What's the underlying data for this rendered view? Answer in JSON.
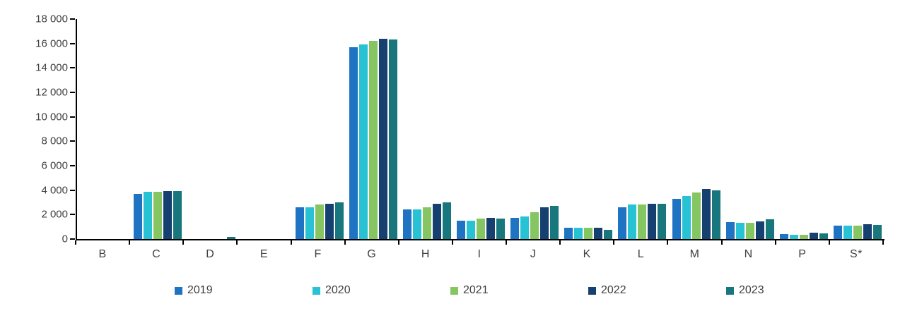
{
  "chart_data": {
    "type": "bar",
    "title": "",
    "xlabel": "",
    "ylabel": "",
    "grid": false,
    "legend_position": "bottom",
    "categories": [
      "B",
      "C",
      "D",
      "E",
      "F",
      "G",
      "H",
      "I",
      "J",
      "K",
      "L",
      "M",
      "N",
      "P",
      "S*"
    ],
    "series": [
      {
        "name": "2019",
        "color": "#1e73c3",
        "values": [
          0,
          3700,
          0,
          0,
          2600,
          15700,
          2400,
          1500,
          1750,
          900,
          2600,
          3300,
          1400,
          400,
          1100
        ]
      },
      {
        "name": "2020",
        "color": "#27c3d5",
        "values": [
          0,
          3850,
          0,
          0,
          2600,
          15900,
          2450,
          1500,
          1850,
          900,
          2800,
          3500,
          1350,
          350,
          1100
        ]
      },
      {
        "name": "2021",
        "color": "#85c663",
        "values": [
          0,
          3850,
          0,
          0,
          2800,
          16200,
          2600,
          1650,
          2200,
          950,
          2800,
          3800,
          1300,
          350,
          1100
        ]
      },
      {
        "name": "2022",
        "color": "#16406f",
        "values": [
          0,
          3950,
          0,
          0,
          2900,
          16400,
          2900,
          1750,
          2600,
          950,
          2900,
          4100,
          1450,
          500,
          1200
        ]
      },
      {
        "name": "2023",
        "color": "#17777d",
        "values": [
          0,
          3900,
          150,
          0,
          3000,
          16300,
          3000,
          1700,
          2700,
          750,
          2900,
          4000,
          1600,
          480,
          1150
        ]
      }
    ],
    "ylim": [
      0,
      18000
    ],
    "y_tick_step": 2000,
    "y_tick_labels": [
      "0",
      "2 000",
      "4 000",
      "6 000",
      "8 000",
      "10 000",
      "12 000",
      "14 000",
      "16 000",
      "18 000"
    ]
  },
  "colors": {
    "axis": "#000000",
    "text": "#3f3f3f",
    "background": "#ffffff"
  }
}
